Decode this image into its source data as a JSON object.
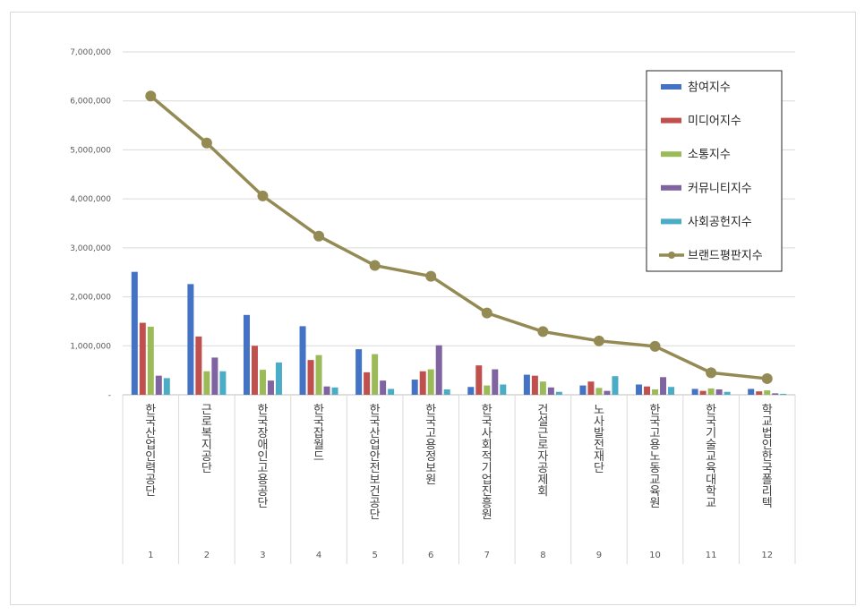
{
  "chart_data": {
    "type": "bar",
    "title": "",
    "xlabel": "",
    "ylabel": "",
    "ylim": [
      0,
      7000000
    ],
    "y_ticks": [
      "-",
      "1,000,000",
      "2,000,000",
      "3,000,000",
      "4,000,000",
      "5,000,000",
      "6,000,000",
      "7,000,000"
    ],
    "grid": true,
    "legend_position": "top-right",
    "categories": [
      {
        "index": "1",
        "name": "한국산업인력공단"
      },
      {
        "index": "2",
        "name": "근로복지공단"
      },
      {
        "index": "3",
        "name": "한국장애인고용공단"
      },
      {
        "index": "4",
        "name": "한국잡월드"
      },
      {
        "index": "5",
        "name": "한국산업안전보건공단"
      },
      {
        "index": "6",
        "name": "한국고용정보원"
      },
      {
        "index": "7",
        "name": "한국사회적기업진흥원"
      },
      {
        "index": "8",
        "name": "건설근로자공제회"
      },
      {
        "index": "9",
        "name": "노사발전재단"
      },
      {
        "index": "10",
        "name": "한국고용노동교육원"
      },
      {
        "index": "11",
        "name": "한국기술교육대학교"
      },
      {
        "index": "12",
        "name": "학교법인한국폴리텍"
      }
    ],
    "series": [
      {
        "name": "참여지수",
        "type": "bar",
        "color": "#4472C4",
        "values": [
          2510000,
          2260000,
          1630000,
          1400000,
          930000,
          310000,
          160000,
          410000,
          190000,
          210000,
          120000,
          120000
        ]
      },
      {
        "name": "미디어지수",
        "type": "bar",
        "color": "#C0504D",
        "values": [
          1470000,
          1190000,
          1000000,
          710000,
          460000,
          480000,
          600000,
          390000,
          270000,
          170000,
          80000,
          70000
        ]
      },
      {
        "name": "소통지수",
        "type": "bar",
        "color": "#9BBB59",
        "values": [
          1390000,
          480000,
          510000,
          810000,
          830000,
          520000,
          190000,
          270000,
          140000,
          110000,
          130000,
          90000
        ]
      },
      {
        "name": "커뮤니티지수",
        "type": "bar",
        "color": "#8064A2",
        "values": [
          390000,
          760000,
          290000,
          170000,
          290000,
          1010000,
          520000,
          150000,
          80000,
          360000,
          110000,
          30000
        ]
      },
      {
        "name": "사회공헌지수",
        "type": "bar",
        "color": "#4BACC6",
        "values": [
          340000,
          480000,
          660000,
          150000,
          120000,
          110000,
          210000,
          60000,
          380000,
          160000,
          60000,
          20000
        ]
      },
      {
        "name": "브랜드평판지수",
        "type": "line",
        "color": "#948A54",
        "values": [
          6100000,
          5140000,
          4060000,
          3240000,
          2640000,
          2420000,
          1670000,
          1290000,
          1100000,
          990000,
          450000,
          330000
        ]
      }
    ]
  }
}
